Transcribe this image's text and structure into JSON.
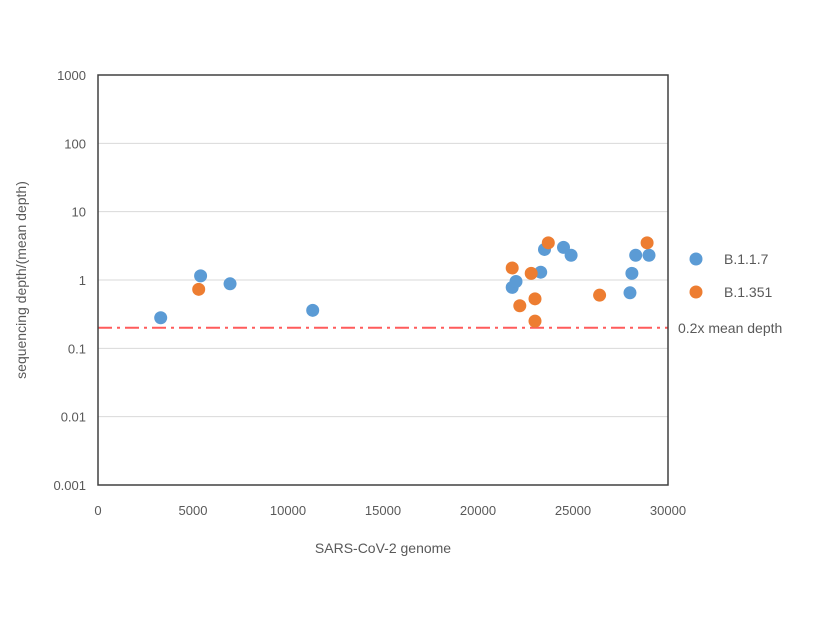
{
  "chart_data": {
    "type": "scatter",
    "title": "",
    "xlabel": "SARS-CoV-2 genome",
    "ylabel": "sequencing depth/(mean depth)",
    "xlim": [
      0,
      30000
    ],
    "ylim": [
      0.001,
      1000
    ],
    "yscale": "log",
    "grid": "horizontal major gridlines",
    "legend_position": "right",
    "x_ticks": [
      "0",
      "5000",
      "10000",
      "15000",
      "20000",
      "25000",
      "30000"
    ],
    "y_ticks": [
      "0.001",
      "0.01",
      "0.1",
      "1",
      "10",
      "100",
      "1000"
    ],
    "colors": {
      "B.1.1.7": "#5b9bd5",
      "B.1.351": "#ed7d31",
      "threshold": "#ff5b5b"
    },
    "series": [
      {
        "name": "B.1.1.7",
        "color": "#5b9bd5",
        "points": [
          {
            "x": 3300,
            "y": 0.28
          },
          {
            "x": 5400,
            "y": 1.15
          },
          {
            "x": 6950,
            "y": 0.88
          },
          {
            "x": 11300,
            "y": 0.36
          },
          {
            "x": 21800,
            "y": 0.78
          },
          {
            "x": 22000,
            "y": 0.95
          },
          {
            "x": 23300,
            "y": 1.3
          },
          {
            "x": 23500,
            "y": 2.8
          },
          {
            "x": 24500,
            "y": 3.0
          },
          {
            "x": 24900,
            "y": 2.3
          },
          {
            "x": 28000,
            "y": 0.65
          },
          {
            "x": 28100,
            "y": 1.25
          },
          {
            "x": 28300,
            "y": 2.3
          },
          {
            "x": 29000,
            "y": 2.3
          }
        ]
      },
      {
        "name": "B.1.351",
        "color": "#ed7d31",
        "points": [
          {
            "x": 5300,
            "y": 0.73
          },
          {
            "x": 21800,
            "y": 1.5
          },
          {
            "x": 22200,
            "y": 0.42
          },
          {
            "x": 22800,
            "y": 1.25
          },
          {
            "x": 23000,
            "y": 0.53
          },
          {
            "x": 23000,
            "y": 0.25
          },
          {
            "x": 23700,
            "y": 3.5
          },
          {
            "x": 26400,
            "y": 0.6
          },
          {
            "x": 28900,
            "y": 3.5
          }
        ]
      }
    ],
    "threshold": {
      "y": 0.2,
      "label": "0.2x mean depth",
      "style": "dash-dot",
      "color": "#ff5b5b"
    }
  }
}
